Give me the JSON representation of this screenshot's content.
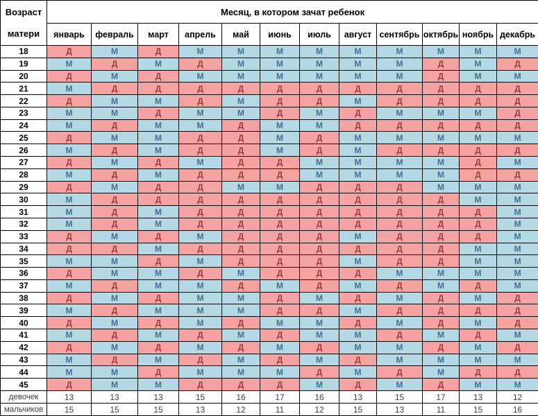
{
  "chart_data": {
    "type": "table",
    "title": "Месяц, в котором зачат ребенок",
    "corner_label_line1": "Возраст",
    "corner_label_line2": "матери",
    "columns": [
      "январь",
      "февраль",
      "март",
      "апрель",
      "май",
      "июнь",
      "июль",
      "август",
      "сентябрь",
      "октябрь",
      "ноябрь",
      "декабрь"
    ],
    "girl_symbol": "Д",
    "boy_symbol": "М",
    "rows": [
      {
        "age": "18",
        "values": [
          "Д",
          "М",
          "Д",
          "М",
          "М",
          "М",
          "М",
          "М",
          "М",
          "М",
          "М",
          "М"
        ]
      },
      {
        "age": "19",
        "values": [
          "М",
          "Д",
          "М",
          "Д",
          "М",
          "М",
          "М",
          "М",
          "М",
          "Д",
          "М",
          "Д"
        ]
      },
      {
        "age": "20",
        "values": [
          "Д",
          "М",
          "Д",
          "М",
          "М",
          "М",
          "М",
          "М",
          "М",
          "Д",
          "М",
          "М"
        ]
      },
      {
        "age": "21",
        "values": [
          "М",
          "Д",
          "Д",
          "Д",
          "Д",
          "Д",
          "Д",
          "Д",
          "Д",
          "Д",
          "Д",
          "Д"
        ]
      },
      {
        "age": "22",
        "values": [
          "Д",
          "М",
          "М",
          "Д",
          "М",
          "Д",
          "Д",
          "М",
          "Д",
          "Д",
          "Д",
          "Д"
        ]
      },
      {
        "age": "23",
        "values": [
          "М",
          "М",
          "Д",
          "М",
          "М",
          "Д",
          "М",
          "Д",
          "М",
          "М",
          "М",
          "Д"
        ]
      },
      {
        "age": "24",
        "values": [
          "М",
          "Д",
          "М",
          "М",
          "Д",
          "М",
          "М",
          "Д",
          "Д",
          "Д",
          "Д",
          "Д"
        ]
      },
      {
        "age": "25",
        "values": [
          "Д",
          "М",
          "М",
          "Д",
          "Д",
          "М",
          "Д",
          "М",
          "М",
          "М",
          "М",
          "М"
        ]
      },
      {
        "age": "26",
        "values": [
          "М",
          "Д",
          "М",
          "Д",
          "Д",
          "М",
          "Д",
          "М",
          "Д",
          "Д",
          "Д",
          "Д"
        ]
      },
      {
        "age": "27",
        "values": [
          "Д",
          "М",
          "Д",
          "М",
          "Д",
          "Д",
          "М",
          "М",
          "М",
          "М",
          "Д",
          "М"
        ]
      },
      {
        "age": "28",
        "values": [
          "М",
          "Д",
          "М",
          "Д",
          "Д",
          "Д",
          "М",
          "М",
          "М",
          "М",
          "Д",
          "Д"
        ]
      },
      {
        "age": "29",
        "values": [
          "Д",
          "М",
          "Д",
          "Д",
          "М",
          "М",
          "Д",
          "Д",
          "Д",
          "М",
          "М",
          "М"
        ]
      },
      {
        "age": "30",
        "values": [
          "М",
          "Д",
          "Д",
          "Д",
          "Д",
          "Д",
          "Д",
          "Д",
          "Д",
          "Д",
          "М",
          "М"
        ]
      },
      {
        "age": "31",
        "values": [
          "М",
          "Д",
          "М",
          "Д",
          "Д",
          "Д",
          "Д",
          "Д",
          "Д",
          "Д",
          "Д",
          "М"
        ]
      },
      {
        "age": "32",
        "values": [
          "М",
          "Д",
          "М",
          "Д",
          "Д",
          "Д",
          "Д",
          "Д",
          "Д",
          "Д",
          "Д",
          "М"
        ]
      },
      {
        "age": "33",
        "values": [
          "Д",
          "М",
          "Д",
          "М",
          "Д",
          "Д",
          "Д",
          "М",
          "Д",
          "Д",
          "Д",
          "М"
        ]
      },
      {
        "age": "34",
        "values": [
          "Д",
          "Д",
          "М",
          "Д",
          "Д",
          "Д",
          "Д",
          "Д",
          "Д",
          "Д",
          "М",
          "М"
        ]
      },
      {
        "age": "35",
        "values": [
          "М",
          "М",
          "Д",
          "М",
          "Д",
          "Д",
          "Д",
          "М",
          "Д",
          "Д",
          "М",
          "М"
        ]
      },
      {
        "age": "36",
        "values": [
          "Д",
          "М",
          "М",
          "Д",
          "М",
          "Д",
          "Д",
          "Д",
          "М",
          "М",
          "М",
          "М"
        ]
      },
      {
        "age": "37",
        "values": [
          "М",
          "Д",
          "М",
          "М",
          "Д",
          "М",
          "Д",
          "М",
          "Д",
          "М",
          "Д",
          "М"
        ]
      },
      {
        "age": "38",
        "values": [
          "Д",
          "М",
          "Д",
          "М",
          "М",
          "Д",
          "М",
          "Д",
          "М",
          "Д",
          "М",
          "Д"
        ]
      },
      {
        "age": "39",
        "values": [
          "М",
          "Д",
          "М",
          "М",
          "М",
          "Д",
          "Д",
          "М",
          "Д",
          "Д",
          "Д",
          "Д"
        ]
      },
      {
        "age": "40",
        "values": [
          "Д",
          "М",
          "Д",
          "М",
          "Д",
          "М",
          "М",
          "Д",
          "М",
          "Д",
          "М",
          "Д"
        ]
      },
      {
        "age": "41",
        "values": [
          "М",
          "Д",
          "М",
          "Д",
          "М",
          "Д",
          "М",
          "М",
          "Д",
          "М",
          "Д",
          "М"
        ]
      },
      {
        "age": "42",
        "values": [
          "Д",
          "М",
          "Д",
          "М",
          "Д",
          "М",
          "Д",
          "М",
          "М",
          "Д",
          "М",
          "Д"
        ]
      },
      {
        "age": "43",
        "values": [
          "М",
          "Д",
          "М",
          "Д",
          "М",
          "Д",
          "М",
          "Д",
          "М",
          "М",
          "М",
          "М"
        ]
      },
      {
        "age": "44",
        "values": [
          "М",
          "М",
          "Д",
          "М",
          "М",
          "М",
          "Д",
          "М",
          "Д",
          "М",
          "Д",
          "Д"
        ]
      },
      {
        "age": "45",
        "values": [
          "Д",
          "М",
          "М",
          "Д",
          "Д",
          "Д",
          "М",
          "Д",
          "М",
          "Д",
          "М",
          "М"
        ]
      }
    ],
    "totals": {
      "girls_label": "девочек",
      "girls": [
        13,
        13,
        13,
        15,
        16,
        17,
        16,
        13,
        15,
        17,
        13,
        12
      ],
      "boys_label": "мальчиков",
      "boys": [
        15,
        15,
        15,
        13,
        12,
        11,
        12,
        15,
        13,
        11,
        15,
        16
      ]
    },
    "colors": {
      "girl_bg": "#f4a2a2",
      "girl_text": "#9e3a3e",
      "boy_bg": "#b4d9e4",
      "boy_text": "#41708e"
    }
  }
}
